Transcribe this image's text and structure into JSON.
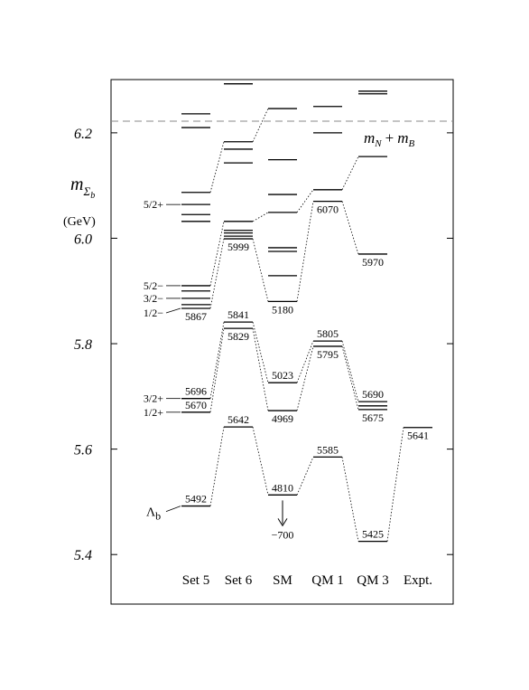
{
  "chart_data": {
    "type": "level",
    "ylabel": [
      "m",
      "Σ",
      "b"
    ],
    "ylabel_unit": "(GeV)",
    "ylim": [
      5.306,
      6.301
    ],
    "yticks": [
      5.4,
      5.6,
      5.8,
      {
        "value": 6,
        "label": "6.0"
      },
      6.2
    ],
    "threshold": 6.222,
    "threshold_label": [
      "m",
      "N",
      "+",
      "m",
      "B"
    ],
    "annotation": "−700",
    "state_labels": [
      "5/2+",
      "5/2−",
      "3/2−",
      "1/2−",
      "3/2+",
      "1/2+",
      [
        "Λ",
        "b"
      ]
    ],
    "columns": [
      {
        "name": "Set 5",
        "levels": [
          6.236,
          6.21,
          6.087,
          6.064,
          6.045,
          6.032,
          5.91,
          5.9,
          5.886,
          5.874,
          5.867,
          5.696,
          5.67,
          5.492
        ],
        "level_labels": [
          null,
          null,
          null,
          null,
          null,
          null,
          null,
          null,
          null,
          null,
          "5867",
          "5696",
          "5670",
          "5492"
        ]
      },
      {
        "name": "Set 6",
        "levels": [
          6.293,
          6.183,
          6.169,
          6.143,
          6.032,
          6.015,
          6.01,
          6.004,
          5.999,
          5.841,
          5.829,
          5.642
        ],
        "level_labels": [
          null,
          null,
          null,
          null,
          null,
          null,
          null,
          null,
          "5999",
          "5841",
          "5829",
          "5642"
        ]
      },
      {
        "name": "SM",
        "levels": [
          6.246,
          6.149,
          6.083,
          6.049,
          5.982,
          5.975,
          5.929,
          5.88,
          5.726,
          5.673,
          5.513
        ],
        "level_labels": [
          null,
          null,
          null,
          null,
          null,
          null,
          null,
          "5180",
          "5023",
          "4969",
          "4810"
        ]
      },
      {
        "name": "QM 1",
        "levels": [
          6.25,
          6.2,
          6.092,
          6.07,
          5.805,
          5.795,
          5.585
        ],
        "level_labels": [
          null,
          null,
          null,
          "6070",
          "5805",
          "5795",
          "5585"
        ]
      },
      {
        "name": "QM 3",
        "levels": [
          6.279,
          6.274,
          6.155,
          5.97,
          5.69,
          5.682,
          5.675,
          5.425
        ],
        "level_labels": [
          null,
          null,
          null,
          "5970",
          "5690",
          null,
          "5675",
          "5425"
        ]
      },
      {
        "name": "Expt.",
        "levels": [
          5.641
        ],
        "level_labels": [
          "5641"
        ]
      }
    ]
  }
}
